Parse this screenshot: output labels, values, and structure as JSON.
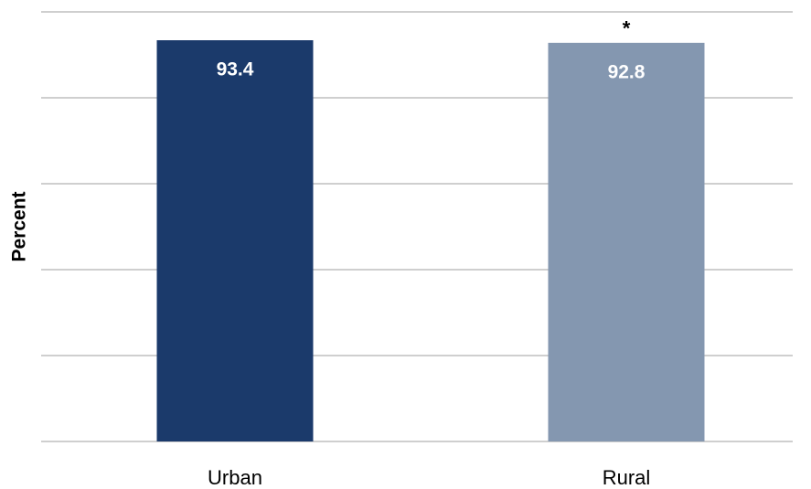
{
  "chart_data": {
    "type": "bar",
    "y_label": "Percent",
    "categories": [
      "Urban",
      "Rural"
    ],
    "values": [
      93.4,
      92.8
    ],
    "colors": [
      "#1b3a6b",
      "#8497b0"
    ],
    "ylim": [
      0,
      100
    ],
    "yticks": [
      0,
      20,
      40,
      60,
      80,
      100
    ],
    "grid": true,
    "annotations": [
      {
        "text": "*",
        "x": "Rural"
      }
    ]
  }
}
